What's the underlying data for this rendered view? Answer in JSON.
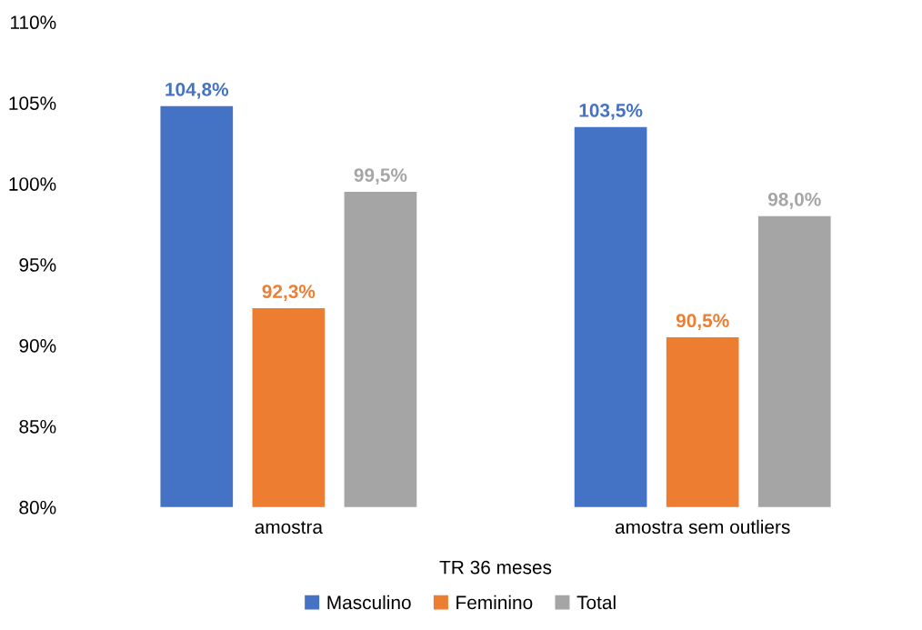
{
  "chart_data": {
    "type": "bar",
    "xlabel": "TR 36 meses",
    "categories": [
      "amostra",
      "amostra sem outliers"
    ],
    "series": [
      {
        "name": "Masculino",
        "color": "#4472c4",
        "values": [
          104.8,
          103.5
        ],
        "value_labels": [
          "104,8%",
          "103,5%"
        ]
      },
      {
        "name": "Feminino",
        "color": "#ed7d31",
        "values": [
          92.3,
          90.5
        ],
        "value_labels": [
          "92,3%",
          "90,5%"
        ]
      },
      {
        "name": "Total",
        "color": "#a5a5a5",
        "values": [
          99.5,
          98.0
        ],
        "value_labels": [
          "99,5%",
          "98,0%"
        ]
      }
    ],
    "ylim": [
      80,
      110
    ],
    "yticks": [
      {
        "value": 80,
        "label": "80%"
      },
      {
        "value": 85,
        "label": "85%"
      },
      {
        "value": 90,
        "label": "90%"
      },
      {
        "value": 95,
        "label": "95%"
      },
      {
        "value": 100,
        "label": "100%"
      },
      {
        "value": 105,
        "label": "105%"
      },
      {
        "value": 110,
        "label": "110%"
      }
    ],
    "grid": false,
    "legend": "bottom"
  }
}
